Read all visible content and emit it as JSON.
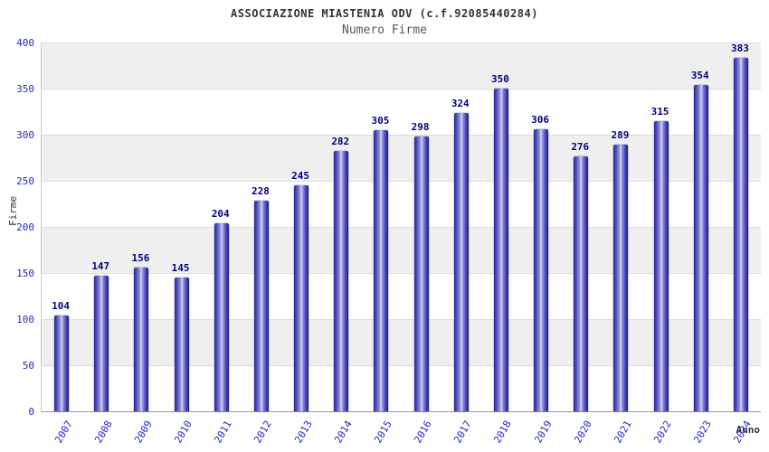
{
  "header": {
    "title": "ASSOCIAZIONE MIASTENIA ODV (c.f.92085440284)",
    "subtitle": "Numero Firme"
  },
  "chart_data": {
    "type": "bar",
    "title": "ASSOCIAZIONE MIASTENIA ODV (c.f.92085440284)",
    "subtitle": "Numero Firme",
    "xlabel": "Anno",
    "ylabel": "Firme",
    "ylim": [
      0,
      400
    ],
    "ytick_step": 50,
    "grid": true,
    "legend": "none",
    "bar_color": "#3a3ab0",
    "categories": [
      "2007",
      "2008",
      "2009",
      "2010",
      "2011",
      "2012",
      "2013",
      "2014",
      "2015",
      "2016",
      "2017",
      "2018",
      "2019",
      "2020",
      "2021",
      "2022",
      "2023",
      "2024"
    ],
    "values": [
      104,
      147,
      156,
      145,
      204,
      228,
      245,
      282,
      305,
      298,
      324,
      350,
      306,
      276,
      289,
      315,
      354,
      383
    ]
  },
  "colors": {
    "tick_label": "#2727c4",
    "value_label": "#00007d",
    "band": "#efefef",
    "gridline": "#dddddd"
  }
}
